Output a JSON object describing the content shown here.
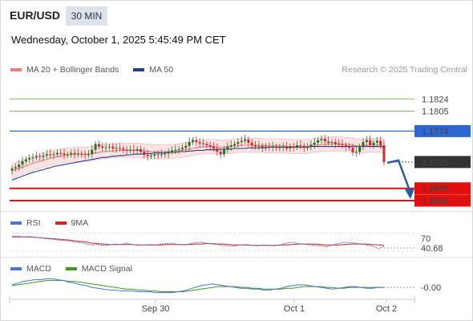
{
  "header": {
    "symbol": "EUR/USD",
    "timeframe": "30 MIN",
    "timestamp": "Wednesday, October 1, 2025 5:45:49 PM CET"
  },
  "legend": {
    "ma20": "MA 20 + Bollinger Bands",
    "ma50": "MA 50",
    "credit": "Research © 2025 Trading Central"
  },
  "colors": {
    "ma20": "#f47a7a",
    "ma50": "#1f3f8f",
    "bands_fill": "#fcdada",
    "candle_up": "#2b6e2b",
    "candle_down": "#cc2a2a",
    "resistance_green": "#5aa02c",
    "pivot_blue": "#2c67d3",
    "support_red": "#e30f0f",
    "current_price": "#333333",
    "arrow": "#2b5aa5",
    "rsi": "#4a73d8",
    "rsi_ma": "#e01f1f",
    "macd": "#4a73d8",
    "macd_signal": "#3c9a1e"
  },
  "chart_data": [
    {
      "type": "candlestick",
      "title": "EUR/USD 30 MIN",
      "overlays": [
        "MA 20 + Bollinger Bands",
        "MA 50"
      ],
      "x_ticks": [
        "Sep 30",
        "Oct 1",
        "Oct 2"
      ],
      "price_levels": [
        {
          "label": "1.1824",
          "value": 1.1824,
          "kind": "resistance"
        },
        {
          "label": "1.1805",
          "value": 1.1805,
          "kind": "resistance"
        },
        {
          "label": "1.1774",
          "value": 1.1774,
          "kind": "pivot"
        },
        {
          "label": "1.1726",
          "value": 1.1726,
          "kind": "current"
        },
        {
          "label": "1.1685",
          "value": 1.1685,
          "kind": "support"
        },
        {
          "label": "1.1666",
          "value": 1.1666,
          "kind": "support"
        }
      ],
      "ylim": [
        1.1656,
        1.1858
      ],
      "forecast": {
        "from": 1.1726,
        "to": 1.1666,
        "direction": "down"
      },
      "closes": [
        1.1716,
        1.1718,
        1.1722,
        1.1727,
        1.173,
        1.1732,
        1.1733,
        1.1735,
        1.1734,
        1.1736,
        1.1738,
        1.1737,
        1.1738,
        1.174,
        1.1739,
        1.1737,
        1.1738,
        1.174,
        1.1738,
        1.1739,
        1.1738,
        1.1737,
        1.1738,
        1.1745,
        1.1754,
        1.175,
        1.1748,
        1.1749,
        1.175,
        1.1747,
        1.1748,
        1.1747,
        1.1745,
        1.1744,
        1.1745,
        1.1744,
        1.1746,
        1.1742,
        1.1737,
        1.1735,
        1.1736,
        1.1738,
        1.1737,
        1.1738,
        1.1739,
        1.1742,
        1.1744,
        1.1745,
        1.1746,
        1.1748,
        1.1751,
        1.1757,
        1.176,
        1.1757,
        1.1755,
        1.1754,
        1.1752,
        1.175,
        1.1747,
        1.1742,
        1.1738,
        1.1745,
        1.175,
        1.1752,
        1.1754,
        1.1757,
        1.1759,
        1.1761,
        1.1756,
        1.1752,
        1.175,
        1.1751,
        1.1748,
        1.175,
        1.1749,
        1.175,
        1.1748,
        1.1749,
        1.175,
        1.1747,
        1.175,
        1.1749,
        1.1752,
        1.1751,
        1.1748,
        1.175,
        1.1753,
        1.1756,
        1.176,
        1.1762,
        1.1758,
        1.1756,
        1.1757,
        1.1754,
        1.1753,
        1.1752,
        1.175,
        1.1748,
        1.1741,
        1.1742,
        1.175,
        1.1757,
        1.176,
        1.1752,
        1.1756,
        1.1759,
        1.1752,
        1.1726
      ],
      "ma20": [
        1.1712,
        1.1714,
        1.1716,
        1.1718,
        1.172,
        1.1722,
        1.1724,
        1.1726,
        1.1727,
        1.1729,
        1.173,
        1.1732,
        1.1733,
        1.1734,
        1.1735,
        1.1736,
        1.1737,
        1.1737,
        1.1738,
        1.1738,
        1.1738,
        1.1738,
        1.1738,
        1.1739,
        1.174,
        1.1741,
        1.1742,
        1.1742,
        1.1743,
        1.1743,
        1.1744,
        1.1744,
        1.1744,
        1.1744,
        1.1744,
        1.1744,
        1.1744,
        1.1744,
        1.1743,
        1.1743,
        1.1742,
        1.1742,
        1.1742,
        1.1742,
        1.1742,
        1.1742,
        1.1742,
        1.1743,
        1.1743,
        1.1744,
        1.1745,
        1.1746,
        1.1747,
        1.1748,
        1.1749,
        1.1749,
        1.175,
        1.175,
        1.175,
        1.1749,
        1.1749,
        1.1749,
        1.175,
        1.175,
        1.1751,
        1.1751,
        1.1752,
        1.1752,
        1.1752,
        1.1752,
        1.1752,
        1.1752,
        1.1752,
        1.1751,
        1.1751,
        1.1751,
        1.1751,
        1.1751,
        1.1751,
        1.175,
        1.175,
        1.175,
        1.175,
        1.175,
        1.175,
        1.175,
        1.1751,
        1.1752,
        1.1752,
        1.1753,
        1.1753,
        1.1754,
        1.1754,
        1.1754,
        1.1754,
        1.1754,
        1.1753,
        1.1753,
        1.1752,
        1.1751,
        1.1751,
        1.1751,
        1.1752,
        1.1752,
        1.1752,
        1.1752,
        1.1752,
        1.175
      ],
      "ma50": [
        1.1698,
        1.17,
        1.1702,
        1.1704,
        1.1706,
        1.1708,
        1.171,
        1.1711,
        1.1713,
        1.1714,
        1.1716,
        1.1717,
        1.1719,
        1.172,
        1.1721,
        1.1722,
        1.1723,
        1.1724,
        1.1725,
        1.1726,
        1.1727,
        1.1728,
        1.1729,
        1.173,
        1.1731,
        1.1732,
        1.1733,
        1.1733,
        1.1734,
        1.1735,
        1.1735,
        1.1736,
        1.1736,
        1.1737,
        1.1737,
        1.1738,
        1.1738,
        1.1738,
        1.1739,
        1.1739,
        1.1739,
        1.174,
        1.174,
        1.174,
        1.174,
        1.1741,
        1.1741,
        1.1741,
        1.1742,
        1.1742,
        1.1742,
        1.1743,
        1.1743,
        1.1744,
        1.1744,
        1.1744,
        1.1745,
        1.1745,
        1.1745,
        1.1745,
        1.1746,
        1.1746,
        1.1746,
        1.1746,
        1.1747,
        1.1747,
        1.1747,
        1.1747,
        1.1748,
        1.1748,
        1.1748,
        1.1748,
        1.1748,
        1.1748,
        1.1749,
        1.1749,
        1.1749,
        1.1749,
        1.1749,
        1.1749,
        1.1749,
        1.1749,
        1.1749,
        1.1749,
        1.1749,
        1.1749,
        1.175,
        1.175,
        1.175,
        1.175,
        1.175,
        1.175,
        1.175,
        1.175,
        1.175,
        1.175,
        1.175,
        1.175,
        1.175,
        1.175,
        1.175,
        1.175,
        1.175,
        1.175,
        1.175,
        1.175,
        1.175,
        1.1749
      ]
    },
    {
      "type": "line",
      "title": "RSI",
      "series": [
        {
          "name": "RSI",
          "values": [
            63,
            64,
            62,
            63,
            61,
            60,
            58,
            57,
            55,
            54,
            53,
            50,
            49,
            46,
            44,
            45,
            43,
            44,
            46,
            45,
            48,
            45,
            43,
            44,
            45,
            44,
            46,
            47,
            48,
            45,
            44,
            46,
            49,
            50,
            48,
            46,
            45,
            43,
            41,
            42,
            44,
            45,
            43,
            42,
            44,
            43,
            42,
            45,
            48,
            50,
            47,
            46,
            44,
            43,
            42,
            40,
            44,
            47,
            50,
            49,
            48,
            46,
            44,
            41,
            36,
            40.68
          ]
        },
        {
          "name": "9MA",
          "values": [
            62,
            62,
            62,
            62,
            61,
            60,
            59,
            58,
            57,
            56,
            55,
            53,
            52,
            50,
            48,
            47,
            46,
            45,
            45,
            45,
            45,
            45,
            44,
            44,
            44,
            44,
            44,
            45,
            45,
            45,
            45,
            45,
            46,
            46,
            47,
            47,
            46,
            46,
            45,
            44,
            44,
            44,
            43,
            43,
            43,
            43,
            43,
            44,
            44,
            45,
            46,
            46,
            46,
            46,
            45,
            44,
            44,
            44,
            45,
            46,
            46,
            46,
            46,
            45,
            44,
            43
          ]
        }
      ],
      "levels": [
        70,
        40.68
      ],
      "ylim": [
        30,
        75
      ]
    },
    {
      "type": "line",
      "title": "MACD",
      "series": [
        {
          "name": "MACD",
          "values": [
            0.0003,
            0.0005,
            0.0007,
            0.0008,
            0.0009,
            0.0009,
            0.001,
            0.001,
            0.0009,
            0.0008,
            0.0006,
            0.0005,
            0.0003,
            0.0002,
            0.0,
            -0.0001,
            -0.0002,
            -0.0003,
            -0.0003,
            -0.0004,
            -0.0004,
            -0.0004,
            -0.0005,
            -0.0005,
            -0.0005,
            -0.0006,
            -0.0006,
            -0.0006,
            -0.0006,
            -0.0005,
            -0.0004,
            -0.0002,
            0.0,
            0.0002,
            0.0003,
            0.0004,
            0.0003,
            0.0002,
            0.0001,
            0.0,
            -0.0001,
            -0.0001,
            -0.0002,
            -0.0002,
            -0.0003,
            -0.0003,
            -0.0002,
            -0.0001,
            0.0001,
            0.0002,
            0.0003,
            0.0003,
            0.0002,
            0.0001,
            0.0,
            -0.0001,
            -0.0002,
            -0.0001,
            0.0,
            0.0001,
            0.0001,
            0.0,
            -0.0001,
            -0.0001,
            0.0,
            0.0
          ]
        },
        {
          "name": "MACD Signal",
          "values": [
            0.0002,
            0.0003,
            0.0004,
            0.0005,
            0.0006,
            0.0007,
            0.0008,
            0.0008,
            0.0008,
            0.0008,
            0.0007,
            0.0007,
            0.0006,
            0.0005,
            0.0004,
            0.0003,
            0.0002,
            0.0001,
            0.0,
            -0.0001,
            -0.0002,
            -0.0002,
            -0.0003,
            -0.0003,
            -0.0004,
            -0.0004,
            -0.0005,
            -0.0005,
            -0.0005,
            -0.0005,
            -0.0005,
            -0.0004,
            -0.0003,
            -0.0002,
            -0.0001,
            0.0,
            0.0001,
            0.0001,
            0.0001,
            0.0001,
            0.0,
            0.0,
            -0.0001,
            -0.0001,
            -0.0002,
            -0.0002,
            -0.0002,
            -0.0002,
            -0.0001,
            -0.0001,
            0.0,
            0.0001,
            0.0001,
            0.0001,
            0.0001,
            0.0,
            0.0,
            -0.0001,
            -0.0001,
            0.0,
            0.0,
            0.0,
            0.0,
            0.0,
            0.0,
            0.0
          ]
        }
      ],
      "levels": [
        "-0.00"
      ],
      "ylim": [
        -0.0012,
        0.0016
      ]
    }
  ]
}
